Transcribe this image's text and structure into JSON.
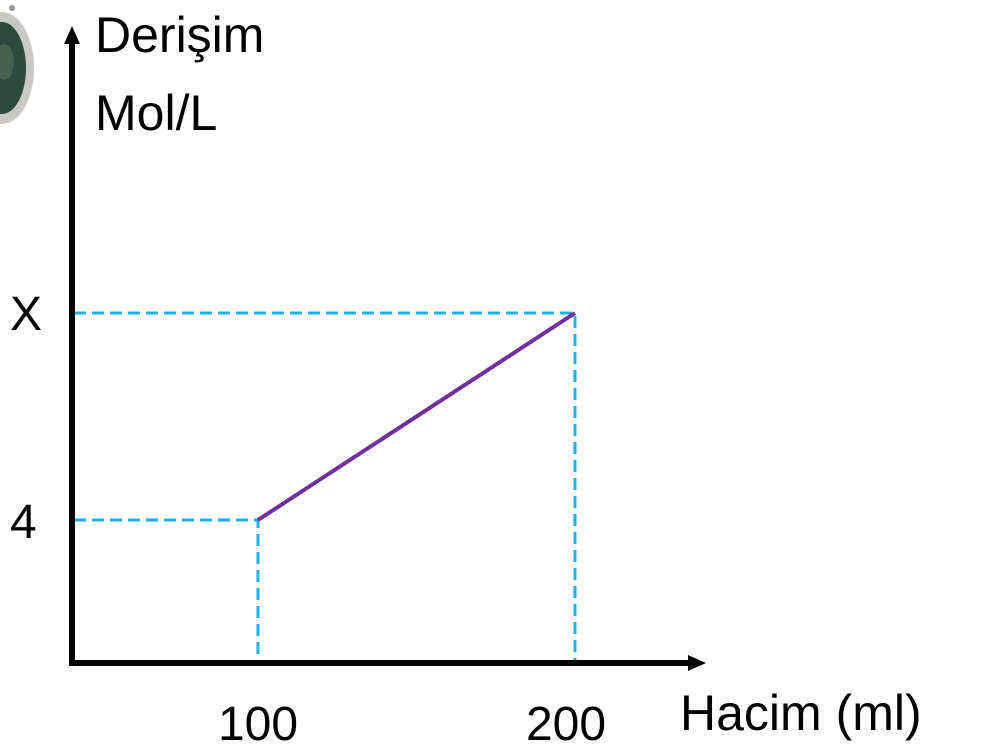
{
  "axes": {
    "y_label": [
      "Derişim",
      "Mol/L"
    ],
    "x_label": "Hacim (ml)"
  },
  "ticks": {
    "y": [
      "X",
      "4"
    ],
    "x": [
      "100",
      "200"
    ]
  }
}
